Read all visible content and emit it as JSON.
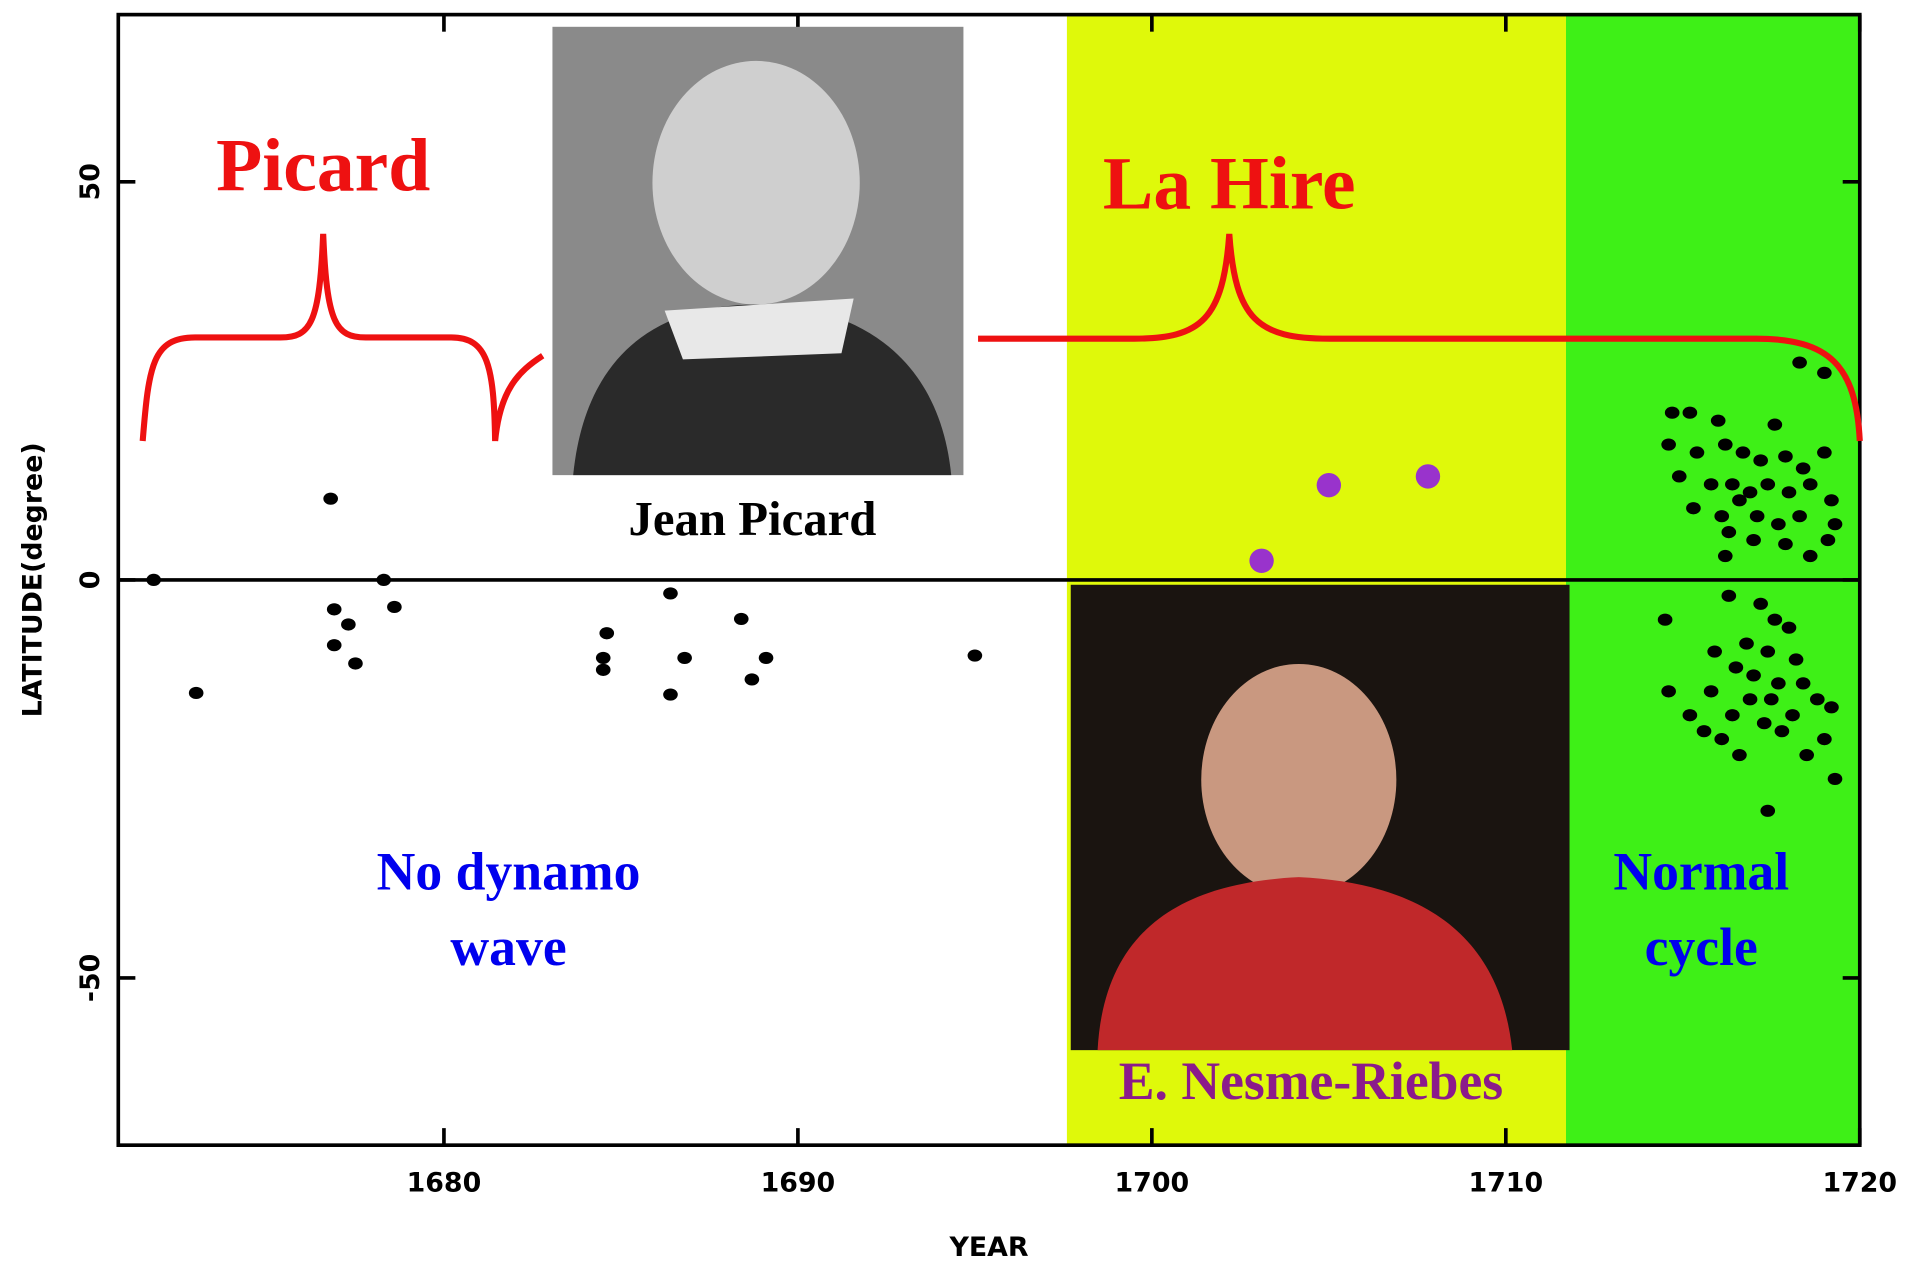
{
  "chart_data": {
    "type": "scatter",
    "xlabel": "YEAR",
    "ylabel": "LATITUDE(degree)",
    "xlim": [
      1670.8,
      1720
    ],
    "ylim": [
      -71,
      71
    ],
    "xticks": [
      1680,
      1690,
      1700,
      1710,
      1720
    ],
    "yticks": [
      -50,
      0,
      50
    ],
    "bands": [
      {
        "x": [
          1697.6,
          1711.7
        ],
        "color": "#dff90a"
      },
      {
        "x": [
          1711.7,
          1720
        ],
        "color": "#3ef017"
      }
    ],
    "series": [
      {
        "color": "#000000",
        "x": [
          1671.8,
          1673.0,
          1676.8,
          1676.9,
          1677.3,
          1676.9,
          1677.5,
          1678.3,
          1678.6,
          1684.6,
          1684.5,
          1684.5,
          1686.4,
          1686.4,
          1686.8,
          1688.4,
          1688.7,
          1689.1,
          1695.0,
          1718.3,
          1719.0,
          1714.7,
          1715.2,
          1716.0,
          1717.6,
          1719.0,
          1714.6,
          1715.4,
          1716.2,
          1716.7,
          1717.2,
          1717.9,
          1718.4,
          1714.9,
          1715.8,
          1716.4,
          1716.9,
          1717.4,
          1718.0,
          1718.6,
          1719.2,
          1715.3,
          1716.1,
          1716.6,
          1717.1,
          1717.7,
          1718.3,
          1719.3,
          1716.3,
          1717.0,
          1717.9,
          1716.2,
          1718.6,
          1719.1,
          1714.5,
          1716.3,
          1717.2,
          1717.6,
          1718.0,
          1715.9,
          1716.8,
          1717.4,
          1718.2,
          1716.5,
          1717.0,
          1717.7,
          1718.4,
          1714.6,
          1715.8,
          1716.9,
          1717.5,
          1718.8,
          1719.2,
          1715.2,
          1716.4,
          1717.3,
          1718.1,
          1715.6,
          1716.1,
          1717.8,
          1719.0,
          1716.6,
          1718.5,
          1719.3,
          1717.4
        ],
        "values": [
          0,
          -14.2,
          10.2,
          -3.7,
          -5.6,
          -8.2,
          -10.5,
          0,
          -3.4,
          -6.7,
          -9.8,
          -11.3,
          -1.7,
          -14.4,
          -9.8,
          -4.9,
          -12.5,
          -9.8,
          -9.5,
          27.3,
          26,
          21,
          21,
          20,
          19.5,
          16,
          17,
          16,
          17,
          16,
          15,
          15.5,
          14,
          13,
          12,
          12,
          11,
          12,
          11,
          12,
          10,
          9,
          8,
          10,
          8,
          7,
          8,
          7,
          6,
          5,
          4.5,
          3,
          3,
          5,
          -5,
          -2,
          -3,
          -5,
          -6,
          -9,
          -8,
          -9,
          -10,
          -11,
          -12,
          -13,
          -13,
          -14,
          -14,
          -15,
          -15,
          -15,
          -16,
          -17,
          -17,
          -18,
          -17,
          -19,
          -20,
          -19,
          -20,
          -22,
          -22,
          -25,
          -29
        ]
      },
      {
        "color": "#9933cc",
        "x": [
          1703.1,
          1705.0,
          1707.8
        ],
        "values": [
          2.4,
          11.9,
          13.0
        ]
      }
    ],
    "annotations": [
      [
        "Picard"
      ],
      [
        "La Hire"
      ],
      [
        "Jean Picard"
      ],
      [
        "No dynamo",
        "wave"
      ],
      [
        "Normal",
        "cycle"
      ],
      [
        "E. Nesme-Riebes"
      ]
    ]
  }
}
